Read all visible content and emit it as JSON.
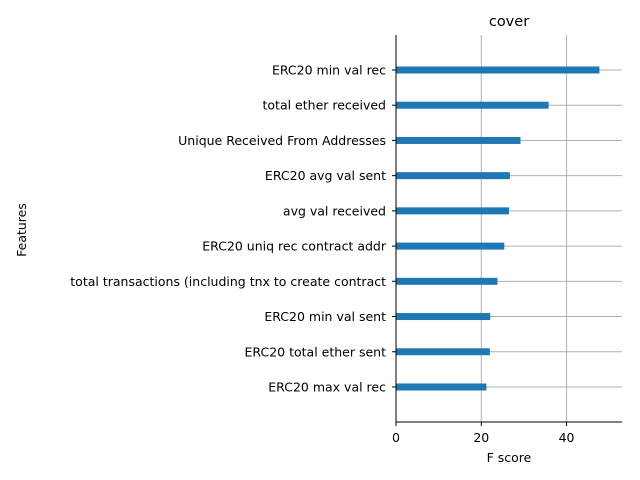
{
  "chart_data": {
    "type": "bar",
    "orientation": "horizontal",
    "title": "cover",
    "xlabel": "F score",
    "ylabel": "Features",
    "grid": true,
    "xlim": [
      0,
      53
    ],
    "xticks": [
      0,
      20,
      40
    ],
    "categories": [
      "ERC20 min val rec",
      "total ether received",
      "Unique Received From Addresses",
      "ERC20 avg val sent",
      "avg val received",
      "ERC20 uniq rec contract addr",
      "total transactions (including tnx to create contract",
      "ERC20 min val sent",
      "ERC20 total ether sent",
      "ERC20 max val rec"
    ],
    "values": [
      47.7,
      35.8,
      29.2,
      26.7,
      26.5,
      25.4,
      23.8,
      22.1,
      22.0,
      21.2
    ],
    "colors": {
      "bar": "#1f77b4",
      "grid": "#b0b0b0",
      "axis": "#000000"
    }
  }
}
